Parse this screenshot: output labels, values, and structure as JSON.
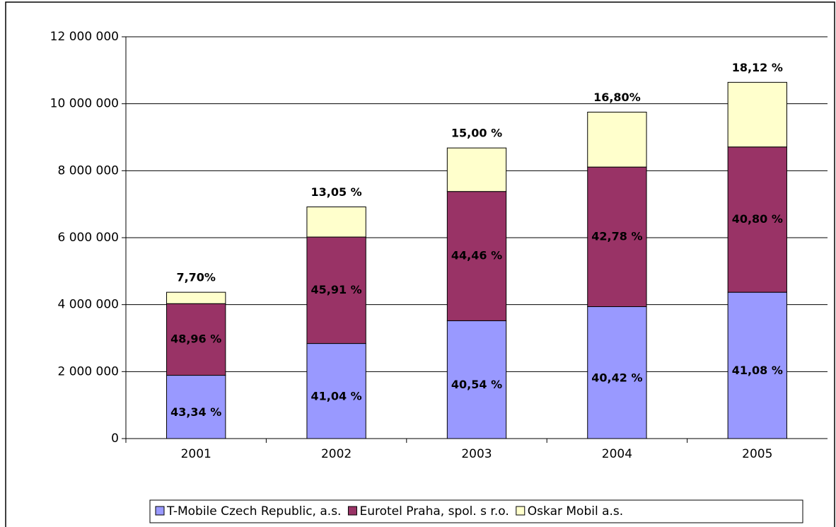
{
  "chart_data": {
    "type": "stacked_bar",
    "categories": [
      "2001",
      "2002",
      "2003",
      "2004",
      "2005"
    ],
    "series": [
      {
        "name": "T-Mobile Czech Republic, a.s.",
        "color": "#9999ff",
        "values": [
          1890000,
          2840000,
          3520000,
          3940000,
          4370000
        ],
        "share_labels": [
          "43,34 %",
          "41,04 %",
          "40,54 %",
          "40,42 %",
          "41,08 %"
        ]
      },
      {
        "name": "Eurotel Praha, spol. s r.o.",
        "color": "#993366",
        "values": [
          2140000,
          3180000,
          3860000,
          4170000,
          4340000
        ],
        "share_labels": [
          "48,96 %",
          "45,91 %",
          "44,46 %",
          "42,78 %",
          "40,80 %"
        ]
      },
      {
        "name": "Oskar Mobil a.s.",
        "color": "#ffffcc",
        "values": [
          340000,
          900000,
          1300000,
          1640000,
          1930000
        ],
        "share_labels": [
          "7,70%",
          "13,05 %",
          "15,00 %",
          "16,80%",
          "18,12 %"
        ]
      }
    ],
    "ylim": [
      0,
      12000000
    ],
    "yticks": [
      0,
      {
        "value": 2000000,
        "label": "2 000 000"
      },
      {
        "value": 4000000,
        "label": "4 000 000"
      },
      {
        "value": 6000000,
        "label": "6 000 000"
      },
      {
        "value": 8000000,
        "label": "8 000 000"
      },
      {
        "value": 10000000,
        "label": "10 000 000"
      },
      {
        "value": 12000000,
        "label": "12 000 000"
      }
    ],
    "grid": true,
    "legend": "bottom"
  }
}
